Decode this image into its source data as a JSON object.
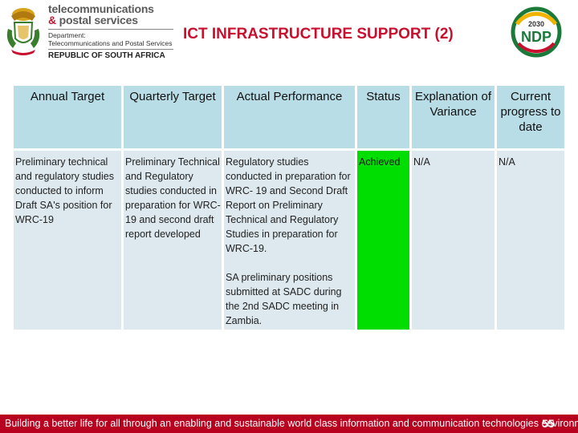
{
  "header": {
    "brand_line1": "telecommunications",
    "brand_line2_prefix": "& ",
    "brand_line2": "postal services",
    "dept_line1": "Department:",
    "dept_line2": "Telecommunications and Postal Services",
    "dept_rsa": "REPUBLIC OF SOUTH AFRICA",
    "title": "ICT INFRASTRUCTURE SUPPORT (2)",
    "ndp_year": "2030",
    "ndp_text": "NDP"
  },
  "table": {
    "headers": [
      "Annual Target",
      "Quarterly Target",
      "Actual Performance",
      "Status",
      "Explanation of Variance",
      "Current progress to date"
    ],
    "row": {
      "annual_target": "Preliminary technical and regulatory studies conducted to inform Draft SA's position for WRC-19",
      "quarterly_target": "Preliminary Technical and Regulatory studies conducted in preparation for WRC- 19 and second draft report developed",
      "actual_performance_p1": "Regulatory studies conducted in preparation for WRC- 19 and Second Draft Report on Preliminary Technical and Regulatory Studies in preparation for WRC-19.",
      "actual_performance_p2": "SA preliminary positions submitted at SADC during the 2nd SADC meeting in Zambia.",
      "status": "Achieved",
      "explanation": "N/A",
      "progress": "N/A"
    }
  },
  "footer": {
    "text": "Building a better life for all through an enabling and sustainable world class information and communication technologies environment",
    "page": "55"
  },
  "colors": {
    "title": "#c8102e",
    "header_cell": "#b9dde6",
    "body_cell": "#dde9ef",
    "achieved": "#00dd00",
    "footer": "#b8001f"
  }
}
